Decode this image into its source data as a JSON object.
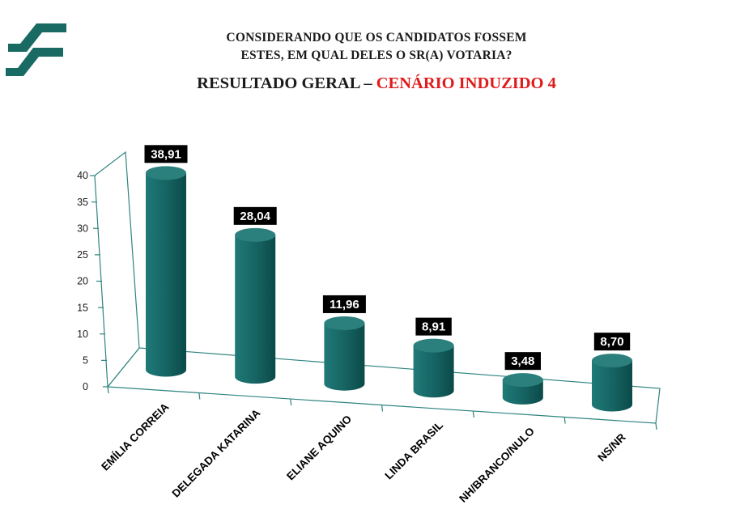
{
  "header": {
    "question_line1": "CONSIDERANDO QUE OS CANDIDATOS FOSSEM",
    "question_line2": "ESTES, EM QUAL DELES O SR(A) VOTARIA?",
    "result_prefix": "RESULTADO GERAL – ",
    "result_scenario": "CENÁRIO INDUZIDO 4",
    "scenario_color": "#e01b1b"
  },
  "logo": {
    "name": "research-institute-logo",
    "color": "#186a62"
  },
  "chart_data": {
    "type": "bar",
    "subtype": "3d-cylinder",
    "title": "RESULTADO GERAL – CENÁRIO INDUZIDO 4",
    "categories": [
      "EMÍLIA CORREIA",
      "DELEGADA KATARINA",
      "ELIANE AQUINO",
      "LINDA BRASIL",
      "NH/BRANCO/NULO",
      "NS/NR"
    ],
    "values": [
      38.91,
      28.04,
      11.96,
      8.91,
      3.48,
      8.7
    ],
    "value_labels": [
      "38,91",
      "28,04",
      "11,96",
      "8,91",
      "3,48",
      "8,70"
    ],
    "xlabel": "",
    "ylabel": "",
    "ylim": [
      0,
      40
    ],
    "ytick_step": 5,
    "yticks": [
      0,
      5,
      10,
      15,
      20,
      25,
      30,
      35,
      40
    ],
    "grid": false,
    "legend": false,
    "colors": {
      "bar_light": "#1f7a78",
      "bar_mid": "#156261",
      "bar_dark": "#0b4a49",
      "bar_top": "#2b807d",
      "outline": "#2e8480",
      "watermark": "#186a62",
      "value_label_bg": "#000000",
      "value_label_text": "#ffffff"
    }
  }
}
